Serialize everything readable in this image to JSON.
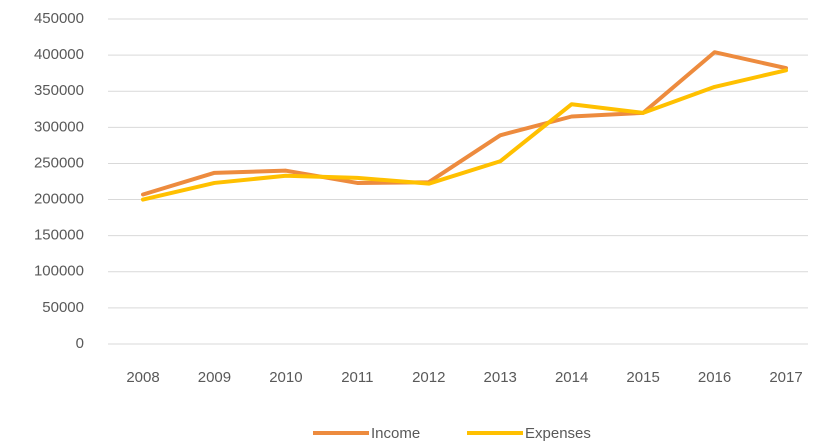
{
  "chart_data": {
    "type": "line",
    "categories": [
      "2008",
      "2009",
      "2010",
      "2011",
      "2012",
      "2013",
      "2014",
      "2015",
      "2016",
      "2017"
    ],
    "series": [
      {
        "name": "Income",
        "color": "#ed8b3e",
        "values": [
          207000,
          237000,
          240000,
          223000,
          224000,
          289000,
          315000,
          320000,
          404000,
          382000
        ]
      },
      {
        "name": "Expenses",
        "color": "#ffc000",
        "values": [
          200000,
          223000,
          233000,
          230000,
          222000,
          253000,
          332000,
          320000,
          356000,
          379000
        ]
      }
    ],
    "ylim": [
      0,
      450000
    ],
    "yticks": [
      0,
      50000,
      100000,
      150000,
      200000,
      250000,
      300000,
      350000,
      400000,
      450000
    ],
    "grid": true,
    "legend": "bottom"
  }
}
